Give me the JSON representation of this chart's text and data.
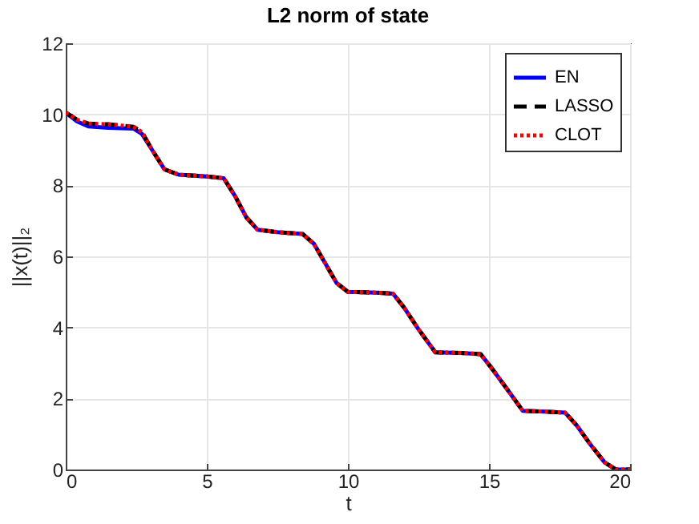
{
  "chart_data": {
    "type": "line",
    "title": "L2 norm of state",
    "xlabel": "t",
    "ylabel": "||x(t)||₂",
    "x": [
      0,
      0.4,
      0.8,
      1.5,
      2.4,
      2.7,
      3.1,
      3.5,
      4.0,
      5.0,
      5.6,
      6.0,
      6.4,
      6.8,
      7.5,
      8.4,
      8.8,
      9.2,
      9.6,
      10.0,
      11.0,
      11.6,
      12.0,
      12.5,
      13.1,
      14.0,
      14.7,
      15.1,
      15.7,
      16.2,
      17.0,
      17.7,
      18.1,
      18.6,
      19.1,
      19.5,
      20
    ],
    "series": [
      {
        "name": "EN",
        "color": "#0000ff",
        "line_style": "solid",
        "values": [
          10.05,
          9.8,
          9.66,
          9.62,
          9.6,
          9.45,
          8.95,
          8.45,
          8.3,
          8.25,
          8.2,
          7.7,
          7.1,
          6.75,
          6.68,
          6.63,
          6.35,
          5.8,
          5.25,
          5.0,
          4.98,
          4.95,
          4.55,
          3.95,
          3.3,
          3.28,
          3.25,
          2.85,
          2.2,
          1.65,
          1.63,
          1.6,
          1.25,
          0.7,
          0.2,
          0,
          0
        ]
      },
      {
        "name": "LASSO",
        "color": "#000000",
        "line_style": "dashed",
        "values": [
          10.05,
          9.85,
          9.74,
          9.72,
          9.65,
          9.5,
          8.95,
          8.45,
          8.3,
          8.25,
          8.2,
          7.7,
          7.1,
          6.75,
          6.68,
          6.63,
          6.35,
          5.8,
          5.25,
          5.0,
          4.98,
          4.95,
          4.55,
          3.95,
          3.3,
          3.28,
          3.25,
          2.85,
          2.2,
          1.65,
          1.63,
          1.6,
          1.25,
          0.7,
          0.2,
          0,
          0
        ]
      },
      {
        "name": "CLOT",
        "color": "#ff0000",
        "line_style": "dotted",
        "values": [
          10.05,
          9.85,
          9.74,
          9.72,
          9.65,
          9.5,
          8.95,
          8.45,
          8.3,
          8.25,
          8.2,
          7.7,
          7.1,
          6.75,
          6.68,
          6.63,
          6.35,
          5.8,
          5.25,
          5.0,
          4.98,
          4.95,
          4.55,
          3.95,
          3.3,
          3.28,
          3.25,
          2.85,
          2.2,
          1.65,
          1.63,
          1.6,
          1.25,
          0.7,
          0.2,
          0,
          0
        ]
      }
    ],
    "xlim": [
      0,
      20
    ],
    "xticks": [
      0,
      5,
      10,
      15,
      20
    ],
    "ylim": [
      0,
      12
    ],
    "yticks": [
      0,
      2,
      4,
      6,
      8,
      10,
      12
    ],
    "grid": true,
    "legend": "top right"
  }
}
